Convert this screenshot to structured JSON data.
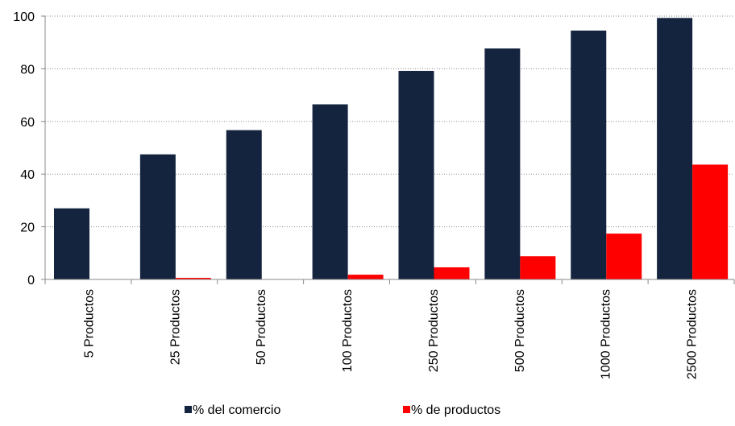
{
  "chart_data": {
    "type": "bar",
    "categories": [
      "5 Productos",
      "25 Productos",
      "50 Productos",
      "100 Productos",
      "250 Productos",
      "500 Productos",
      "1000 Productos",
      "2500 Productos"
    ],
    "series": [
      {
        "name": "% del comercio",
        "color": "#14243f",
        "values": [
          27,
          47.5,
          56.7,
          66.5,
          79.2,
          87.7,
          94.5,
          99.3
        ]
      },
      {
        "name": "% de productos",
        "color": "#ff0000",
        "values": [
          0,
          0.6,
          0,
          1.8,
          4.6,
          8.8,
          17.4,
          43.6
        ]
      }
    ],
    "ylim": [
      0,
      100
    ],
    "yticks": [
      0,
      20,
      40,
      60,
      80,
      100
    ],
    "grid": true,
    "legend_position": "bottom"
  }
}
